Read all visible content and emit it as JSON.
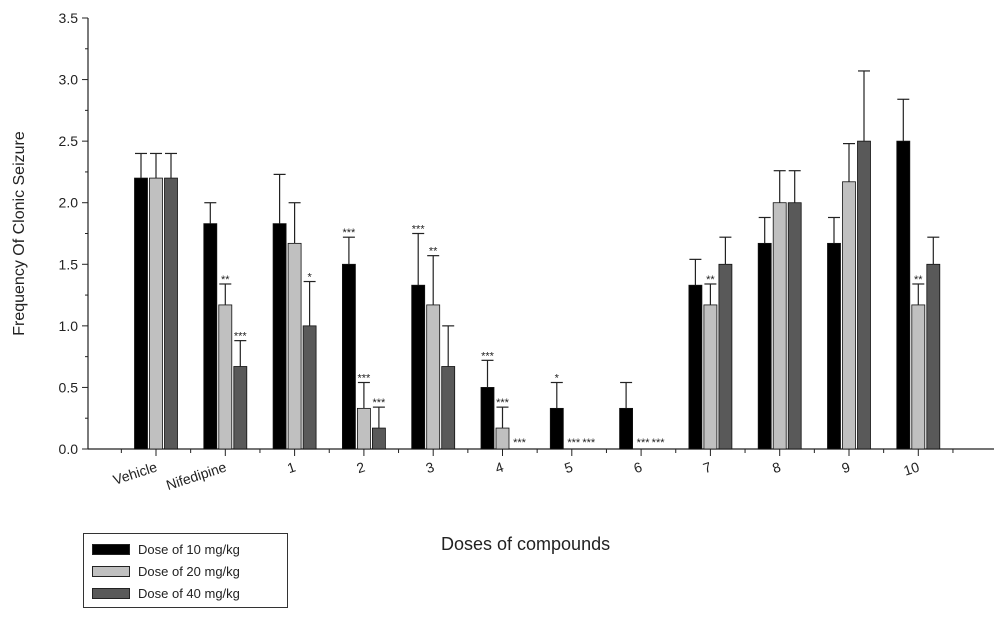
{
  "chart_data": {
    "type": "bar",
    "title": "",
    "xlabel": "Doses of compounds",
    "ylabel": "Frequency Of Clonic Seizure",
    "ylim": [
      0,
      3.5
    ],
    "yticks": [
      "0.0",
      "0.5",
      "1.0",
      "1.5",
      "2.0",
      "2.5",
      "3.0",
      "3.5"
    ],
    "categories": [
      "Vehicle",
      "Nifedipine",
      "1",
      "2",
      "3",
      "4",
      "5",
      "6",
      "7",
      "8",
      "9",
      "10"
    ],
    "legend_position": "bottom-left",
    "grid": false,
    "series": [
      {
        "name": "Dose of 10 mg/kg",
        "color": "#000000",
        "values": [
          2.2,
          1.83,
          1.83,
          1.5,
          1.33,
          0.5,
          0.33,
          0.33,
          1.33,
          1.67,
          1.67,
          2.5
        ],
        "errors": [
          0.2,
          0.17,
          0.4,
          0.22,
          0.42,
          0.22,
          0.21,
          0.21,
          0.21,
          0.21,
          0.21,
          0.34
        ],
        "annotations": [
          "",
          "",
          "",
          "***",
          "***",
          "***",
          "*",
          "",
          "",
          "",
          "",
          ""
        ]
      },
      {
        "name": "Dose of 20 mg/kg",
        "color": "#c0c0c0",
        "values": [
          2.2,
          1.17,
          1.67,
          0.33,
          1.17,
          0.17,
          0,
          0,
          1.17,
          2.0,
          2.17,
          1.17
        ],
        "errors": [
          0.2,
          0.17,
          0.33,
          0.21,
          0.4,
          0.17,
          0,
          0,
          0.17,
          0.26,
          0.31,
          0.17
        ],
        "annotations": [
          "",
          "**",
          "",
          "***",
          "**",
          "***",
          "***",
          "***",
          "**",
          "",
          "",
          "**"
        ]
      },
      {
        "name": "Dose of 40 mg/kg",
        "color": "#595959",
        "values": [
          2.2,
          0.67,
          1.0,
          0.17,
          0.67,
          0,
          0,
          0,
          1.5,
          2.0,
          2.5,
          1.5
        ],
        "errors": [
          0.2,
          0.21,
          0.36,
          0.17,
          0.33,
          0,
          0,
          0,
          0.22,
          0.26,
          0.57,
          0.22
        ],
        "annotations": [
          "",
          "***",
          "*",
          "***",
          "",
          "***",
          "***",
          "***",
          "",
          "",
          "",
          ""
        ]
      }
    ]
  }
}
